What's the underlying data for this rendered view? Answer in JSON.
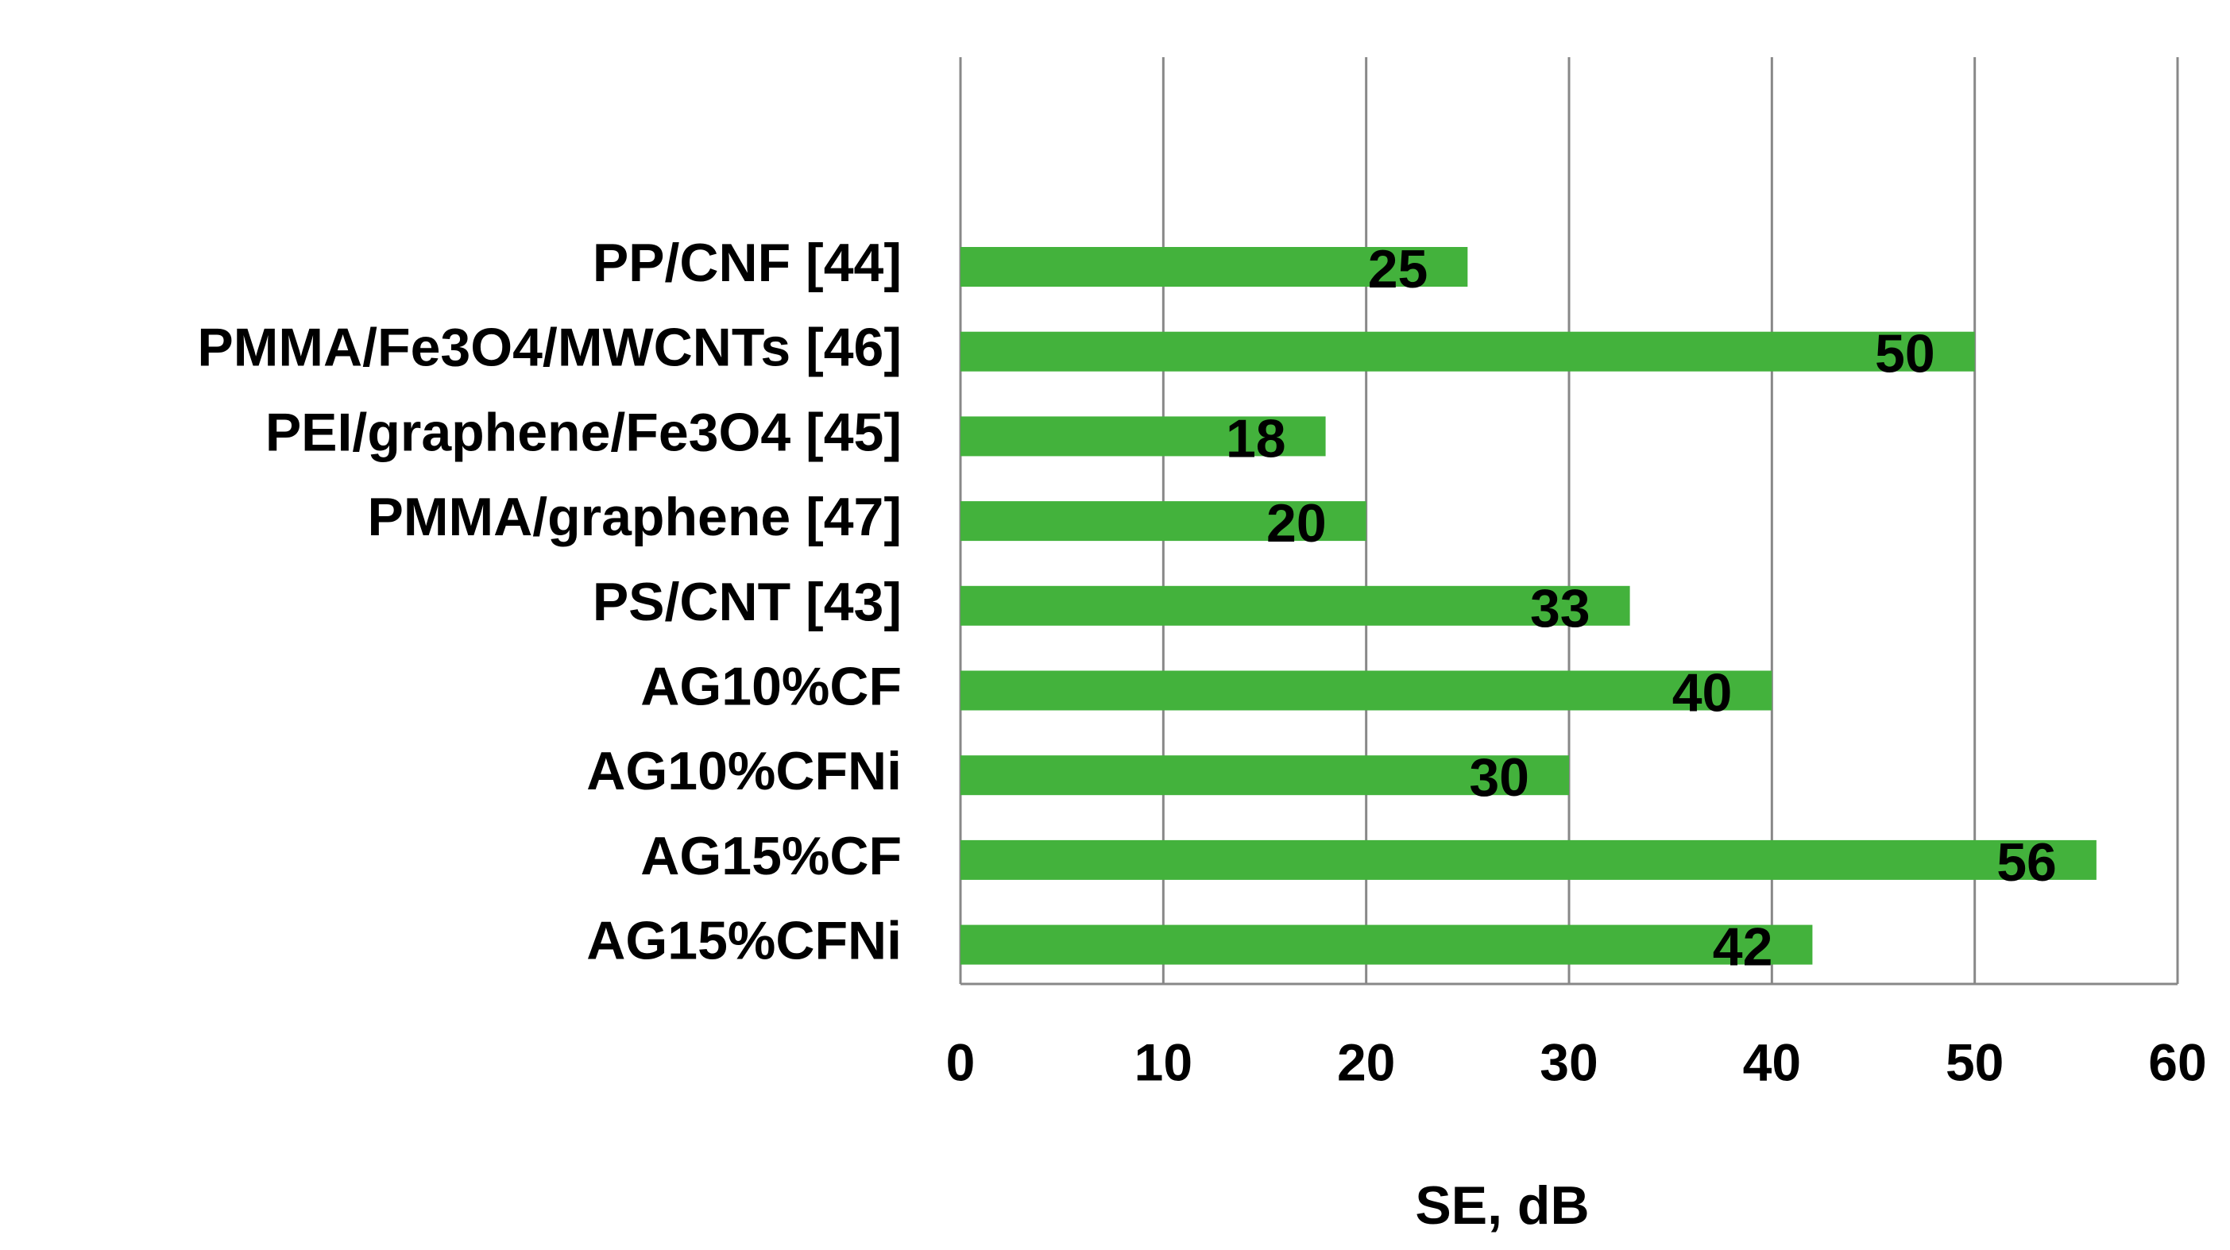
{
  "chart_data": {
    "type": "bar",
    "orientation": "horizontal",
    "x_label": "SE, dB",
    "categories": [
      "PP/CNF [44]",
      "PMMA/Fe3O4/MWCNTs [46]",
      "PEI/graphene/Fe3O4 [45]",
      "PMMA/graphene [47]",
      "PS/CNT [43]",
      "AG10%CF",
      "AG10%CFNi",
      "AG15%CF",
      "AG15%CFNi"
    ],
    "values": [
      25,
      50,
      18,
      20,
      33,
      40,
      30,
      56,
      42
    ],
    "color": "#43b23c",
    "xlim": [
      0,
      60
    ],
    "xticks": [
      0,
      10,
      20,
      30,
      40,
      50,
      60
    ],
    "grid": true
  }
}
